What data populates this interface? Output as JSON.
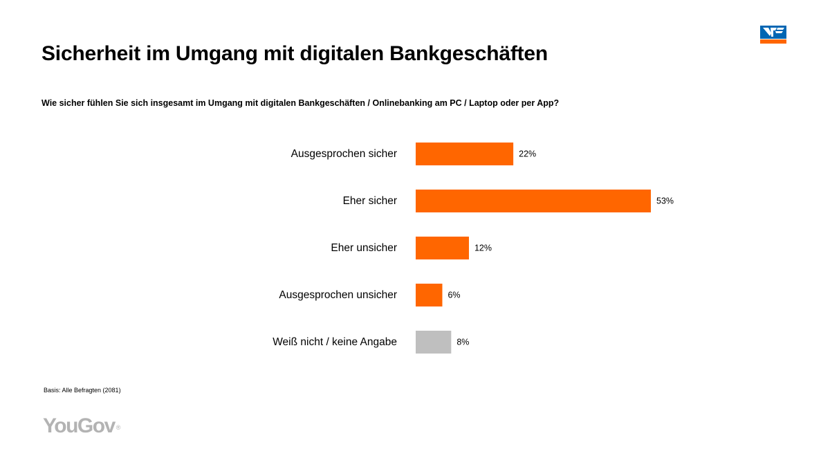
{
  "slide": {
    "title": "Sicherheit im Umgang mit digitalen Bankgeschäften",
    "question": "Wie sicher fühlen Sie sich insgesamt im Umgang mit digitalen Bankgeschäften / Onlinebanking am PC / Laptop oder per App?",
    "footnote": "Basis: Alle Befragten (2081)",
    "source_logo_text": "YouGov",
    "source_logo_mark": "®",
    "brand_logo_icon": "volksbank-logo-icon"
  },
  "chart_data": {
    "type": "bar",
    "orientation": "horizontal",
    "title": "",
    "xlabel": "",
    "ylabel": "",
    "categories": [
      "Ausgesprochen sicher",
      "Eher sicher",
      "Eher unsicher",
      "Ausgesprochen unsicher",
      "Weiß nicht / keine Angabe"
    ],
    "values": [
      22,
      53,
      12,
      6,
      8
    ],
    "value_labels": [
      "22%",
      "53%",
      "12%",
      "6%",
      "8%"
    ],
    "unit": "%",
    "xlim": [
      0,
      53
    ],
    "grid": false,
    "legend": "none",
    "bar_colors": [
      "#ff6600",
      "#ff6600",
      "#ff6600",
      "#ff6600",
      "#bfbfbf"
    ]
  },
  "colors": {
    "accent": "#ff6600",
    "neutral_bar": "#bfbfbf",
    "brand_blue": "#0066b3",
    "logo_gray": "#b3b3b3"
  }
}
